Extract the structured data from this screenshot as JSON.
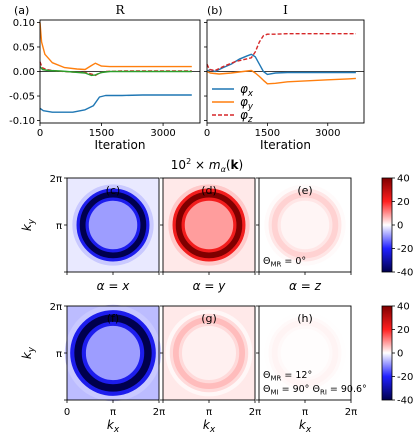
{
  "chart_data": [
    {
      "type": "line",
      "panel_label": "(a)",
      "title": "R",
      "xlabel": "Iteration",
      "xlim": [
        0,
        3900
      ],
      "ylim": [
        -0.105,
        0.105
      ],
      "xticks": [
        "0",
        "1500",
        "3000"
      ],
      "yticks": [
        "0.10",
        "0.05",
        "0.00",
        "-0.05",
        "-0.10"
      ],
      "series": [
        {
          "name": "φx",
          "color": "#1f77b4",
          "dash": false,
          "x": [
            0,
            80,
            300,
            800,
            1100,
            1300,
            1450,
            1600,
            2000,
            2500,
            3000,
            3500,
            3700
          ],
          "y": [
            -0.075,
            -0.08,
            -0.083,
            -0.083,
            -0.078,
            -0.07,
            -0.052,
            -0.049,
            -0.049,
            -0.048,
            -0.048,
            -0.048,
            -0.048
          ]
        },
        {
          "name": "φy",
          "color": "#ff7f0e",
          "dash": false,
          "x": [
            0,
            40,
            120,
            300,
            600,
            900,
            1100,
            1250,
            1350,
            1500,
            1700,
            2000,
            2500,
            3000,
            3500,
            3700
          ],
          "y": [
            0.1,
            0.06,
            0.035,
            0.018,
            0.008,
            0.005,
            0.004,
            0.012,
            0.017,
            0.011,
            0.01,
            0.01,
            0.01,
            0.01,
            0.01,
            0.01
          ]
        },
        {
          "name": "φz",
          "color": "#d62728",
          "dash": true,
          "x": [
            0,
            50,
            150,
            400,
            800,
            1100,
            1250,
            1350,
            1450,
            1600,
            2000,
            2500,
            3000,
            3500,
            3700
          ],
          "y": [
            0.02,
            0.008,
            0.004,
            0.001,
            -0.001,
            -0.002,
            -0.005,
            -0.008,
            -0.003,
            0.0,
            0.001,
            0.001,
            0.001,
            0.001,
            0.001
          ]
        },
        {
          "name": "",
          "color": "#2ca02c",
          "dash": false,
          "x": [
            0,
            60,
            200,
            500,
            800,
            1100,
            1250,
            1350,
            1500,
            1700,
            2000,
            2500,
            3000,
            3500,
            3700
          ],
          "y": [
            0.01,
            0.004,
            0.002,
            0.001,
            -0.001,
            -0.003,
            -0.008,
            -0.007,
            -0.002,
            0.0,
            0.0,
            0.0,
            0.0,
            0.0,
            0.0
          ]
        }
      ]
    },
    {
      "type": "line",
      "panel_label": "(b)",
      "title": "I",
      "xlabel": "Iteration",
      "xlim": [
        0,
        3900
      ],
      "ylim": [
        -0.105,
        0.105
      ],
      "xticks": [
        "0",
        "1500",
        "3000"
      ],
      "series": [
        {
          "name": "φx",
          "color": "#1f77b4",
          "dash": false,
          "x": [
            0,
            80,
            200,
            400,
            600,
            800,
            1000,
            1100,
            1200,
            1300,
            1400,
            1500,
            1700,
            2000,
            2500,
            3000,
            3500,
            3700
          ],
          "y": [
            0.0,
            0.004,
            0.0,
            0.008,
            0.015,
            0.025,
            0.032,
            0.035,
            0.03,
            0.015,
            0.0,
            -0.006,
            -0.003,
            -0.002,
            -0.002,
            -0.002,
            -0.002,
            -0.002
          ]
        },
        {
          "name": "φy",
          "color": "#ff7f0e",
          "dash": false,
          "x": [
            0,
            80,
            300,
            600,
            900,
            1100,
            1200,
            1300,
            1400,
            1500,
            1700,
            2000,
            2500,
            3000,
            3500,
            3700
          ],
          "y": [
            0.0,
            -0.003,
            -0.005,
            -0.003,
            0.0,
            0.002,
            -0.003,
            -0.01,
            -0.018,
            -0.025,
            -0.024,
            -0.021,
            -0.019,
            -0.017,
            -0.015,
            -0.014
          ]
        },
        {
          "name": "φz",
          "color": "#d62728",
          "dash": true,
          "x": [
            0,
            60,
            200,
            400,
            700,
            900,
            1100,
            1200,
            1300,
            1400,
            1500,
            1700,
            2000,
            2500,
            3000,
            3500,
            3700
          ],
          "y": [
            0.015,
            0.004,
            0.002,
            0.01,
            0.02,
            0.024,
            0.028,
            0.04,
            0.06,
            0.073,
            0.076,
            0.076,
            0.077,
            0.077,
            0.077,
            0.077,
            0.077
          ]
        }
      ],
      "legend": {
        "position": "lower-left",
        "entries": [
          "φx",
          "φy",
          "φz"
        ]
      }
    },
    {
      "type": "heatmap",
      "title": "10² × mα(k)",
      "colorscale": "seismic (blue–white–red)",
      "clim": [
        -40,
        40
      ],
      "colorbar_ticks": [
        "40",
        "20",
        "0",
        "-20",
        "-40"
      ],
      "xlabel": "kx",
      "ylabel": "ky",
      "ticks": [
        "0",
        "π",
        "2π"
      ],
      "column_labels": [
        "α = x",
        "α = y",
        "α = z"
      ],
      "panels": [
        {
          "label": "(c)",
          "row": 1,
          "alpha": "x",
          "ring_radius_frac": 0.33,
          "ring_width_frac": 0.07,
          "peak": -40,
          "background": -2,
          "annotations": []
        },
        {
          "label": "(d)",
          "row": 1,
          "alpha": "y",
          "ring_radius_frac": 0.33,
          "ring_width_frac": 0.07,
          "peak": 40,
          "background": 2,
          "annotations": []
        },
        {
          "label": "(e)",
          "row": 1,
          "alpha": "z",
          "ring_radius_frac": 0.33,
          "ring_width_frac": 0.07,
          "peak": 4,
          "background": 0,
          "annotations": [
            "ΘMR = 0°"
          ]
        },
        {
          "label": "(f)",
          "row": 2,
          "alpha": "x",
          "ring_radius_frac": 0.38,
          "ring_width_frac": 0.09,
          "peak": -40,
          "background": -6,
          "annotations": []
        },
        {
          "label": "(g)",
          "row": 2,
          "alpha": "y",
          "ring_radius_frac": 0.36,
          "ring_width_frac": 0.07,
          "peak": 6,
          "background": 2,
          "annotations": []
        },
        {
          "label": "(h)",
          "row": 2,
          "alpha": "z",
          "ring_radius_frac": 0.33,
          "ring_width_frac": 0.07,
          "peak": 1,
          "background": 0,
          "annotations": [
            "ΘMR = 12°",
            "ΘMI = 90°   ΘRI = 90.6°"
          ]
        }
      ]
    }
  ]
}
